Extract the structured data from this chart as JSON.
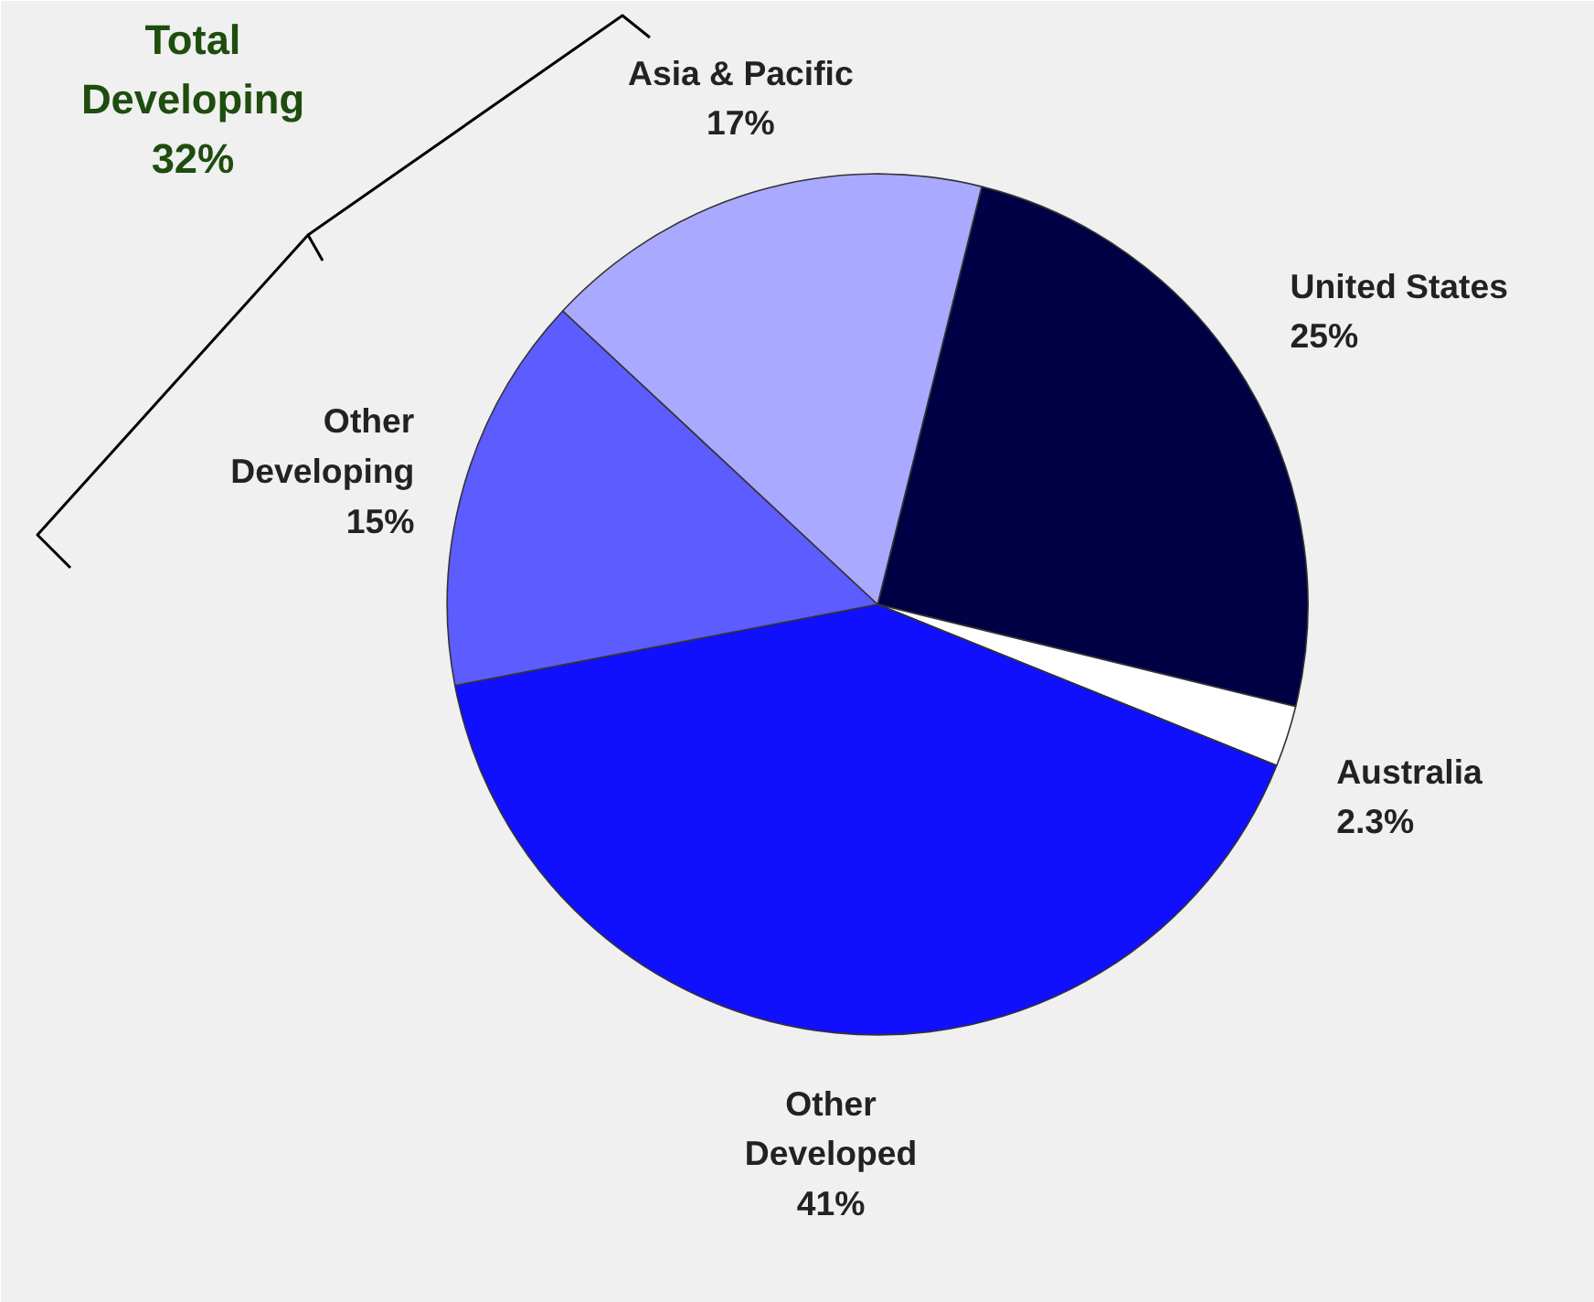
{
  "chart_data": {
    "type": "pie",
    "categories": [
      "United States",
      "Australia",
      "Other\nDeveloped",
      "Other\nDeveloping",
      "Asia & Pacific"
    ],
    "values": [
      25,
      2.3,
      41,
      15,
      17
    ],
    "value_labels": [
      "25%",
      "2.3%",
      "41%",
      "15%",
      "17%"
    ],
    "colors": [
      "#000044",
      "#ffffff",
      "#1010ff",
      "#5c5cff",
      "#a9a9ff"
    ],
    "annotations": [
      "Total\nDeveloping\n32%"
    ]
  }
}
